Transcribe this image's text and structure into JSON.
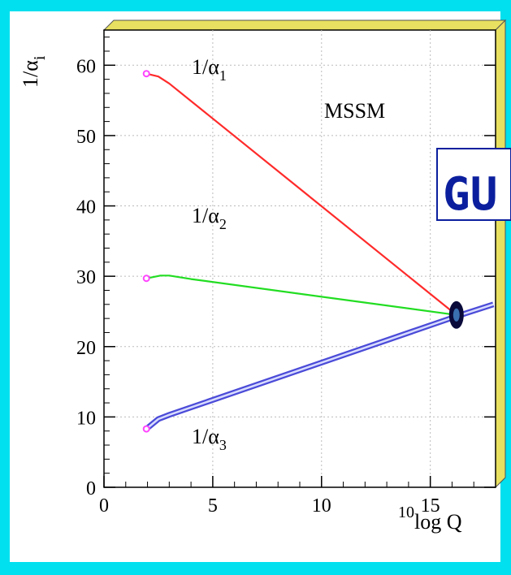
{
  "chart_data": {
    "type": "line",
    "title": "",
    "xlabel_sup": "10",
    "xlabel": "log Q",
    "ylabel_main": "1/α",
    "ylabel_sub": "i",
    "xlim": [
      0,
      18
    ],
    "ylim": [
      0,
      65
    ],
    "xticks": [
      "0",
      "5",
      "10",
      "15"
    ],
    "yticks": [
      "0",
      "10",
      "20",
      "30",
      "40",
      "50",
      "60"
    ],
    "grid": true,
    "model_label": "MSSM",
    "inset_text": "GU",
    "unification_point": {
      "x": 16.2,
      "y": 24.5
    },
    "series": [
      {
        "name_main": "1/α",
        "name_sub": "1",
        "color": "#ff2a2a",
        "x": [
          1.95,
          2.5,
          3.0,
          16.2
        ],
        "y": [
          58.8,
          58.4,
          57.4,
          24.5
        ]
      },
      {
        "name_main": "1/α",
        "name_sub": "2",
        "color": "#22dd22",
        "x": [
          1.95,
          2.6,
          3.0,
          4.0,
          16.2
        ],
        "y": [
          29.7,
          30.1,
          30.1,
          29.6,
          24.5
        ]
      },
      {
        "name_main": "1/α",
        "name_sub": "3",
        "color": "#4b4bd8",
        "x": [
          1.95,
          2.5,
          3.0,
          16.2,
          17.9
        ],
        "y": [
          8.3,
          9.7,
          10.3,
          24.3,
          26.0
        ]
      }
    ]
  }
}
